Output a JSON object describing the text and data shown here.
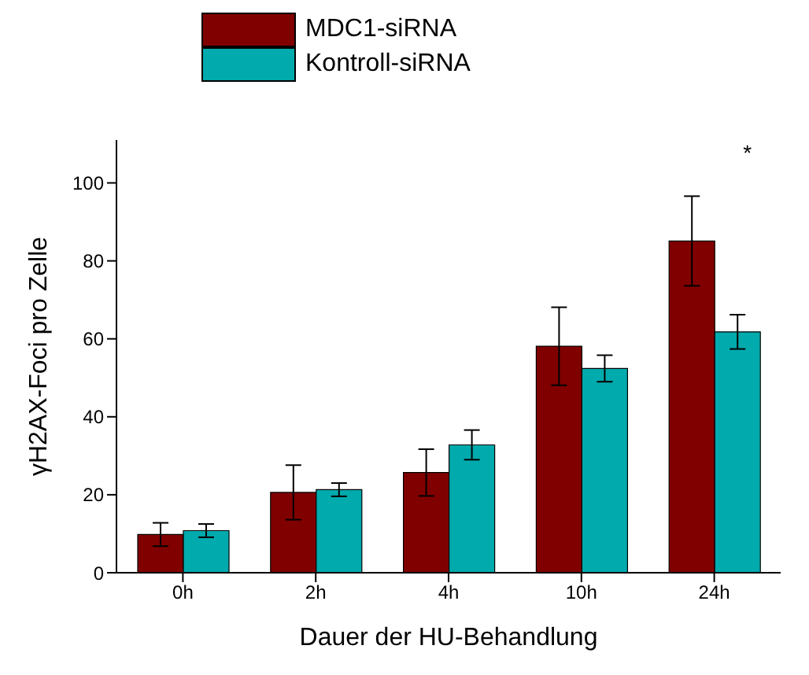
{
  "chart_data": {
    "type": "bar",
    "xlabel": "Dauer der HU-Behandlung",
    "ylabel": "γH2AX-Foci pro Zelle",
    "categories": [
      "0h",
      "2h",
      "4h",
      "10h",
      "24h"
    ],
    "series": [
      {
        "name": "MDC1-siRNA",
        "color": "#800000",
        "values": [
          9.8,
          20.6,
          25.7,
          58.1,
          85.1
        ],
        "errors": [
          3,
          7,
          6,
          10,
          11.5
        ]
      },
      {
        "name": "Kontroll-siRNA",
        "color": "#00aaad",
        "values": [
          10.8,
          21.3,
          32.8,
          52.4,
          61.8
        ],
        "errors": [
          1.7,
          1.7,
          3.8,
          3.4,
          4.4
        ]
      }
    ],
    "ylim": [
      0,
      111
    ],
    "yticks": [
      0,
      20,
      40,
      60,
      80,
      100
    ],
    "grid": false,
    "legend": "top left",
    "annotations": [
      "*"
    ]
  }
}
